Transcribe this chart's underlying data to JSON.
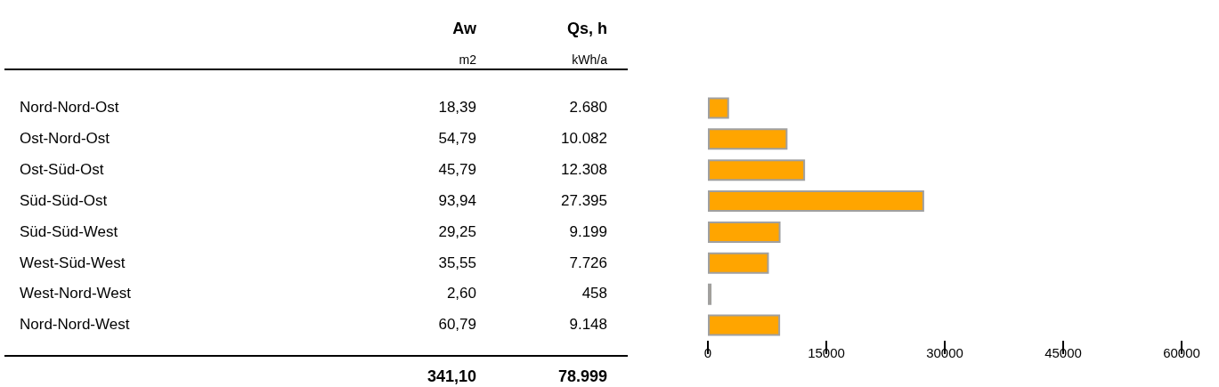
{
  "chart_data": [
    {
      "type": "other",
      "categories": [
        "Nord-Nord-Ost",
        "Ost-Nord-Ost",
        "Ost-Süd-Ost",
        "Süd-Süd-Ost",
        "Süd-Süd-West",
        "West-Süd-West",
        "West-Nord-West",
        "Nord-Nord-West"
      ],
      "series": [
        {
          "name": "Aw",
          "values": [
            18.39,
            54.79,
            45.79,
            93.94,
            29.25,
            35.55,
            2.6,
            60.79
          ],
          "value_labels": [
            "18,39",
            "54,79",
            "45,79",
            "93,94",
            "29,25",
            "35,55",
            "2,60",
            "60,79"
          ]
        },
        {
          "name": "Qs, h",
          "values": [
            2680,
            10082,
            12308,
            27395,
            9199,
            7726,
            458,
            9148
          ],
          "value_labels": [
            "2.680",
            "10.082",
            "12.308",
            "27.395",
            "9.199",
            "7.726",
            "458",
            "9.148"
          ]
        }
      ],
      "annotations": [
        "m2",
        "kWh/a",
        "341,10",
        "78.999"
      ]
    },
    {
      "type": "bar",
      "orientation": "horizontal",
      "categories": [
        null,
        null,
        null,
        null,
        null,
        null,
        null,
        null
      ],
      "values": [
        2680,
        10082,
        12308,
        27395,
        9199,
        7726,
        458,
        9148
      ],
      "color": "#ffa500",
      "xlim": [
        0,
        60000
      ],
      "xticks": [
        0,
        15000,
        30000,
        45000,
        60000
      ],
      "tick_labels": "x",
      "grid": false
    }
  ]
}
